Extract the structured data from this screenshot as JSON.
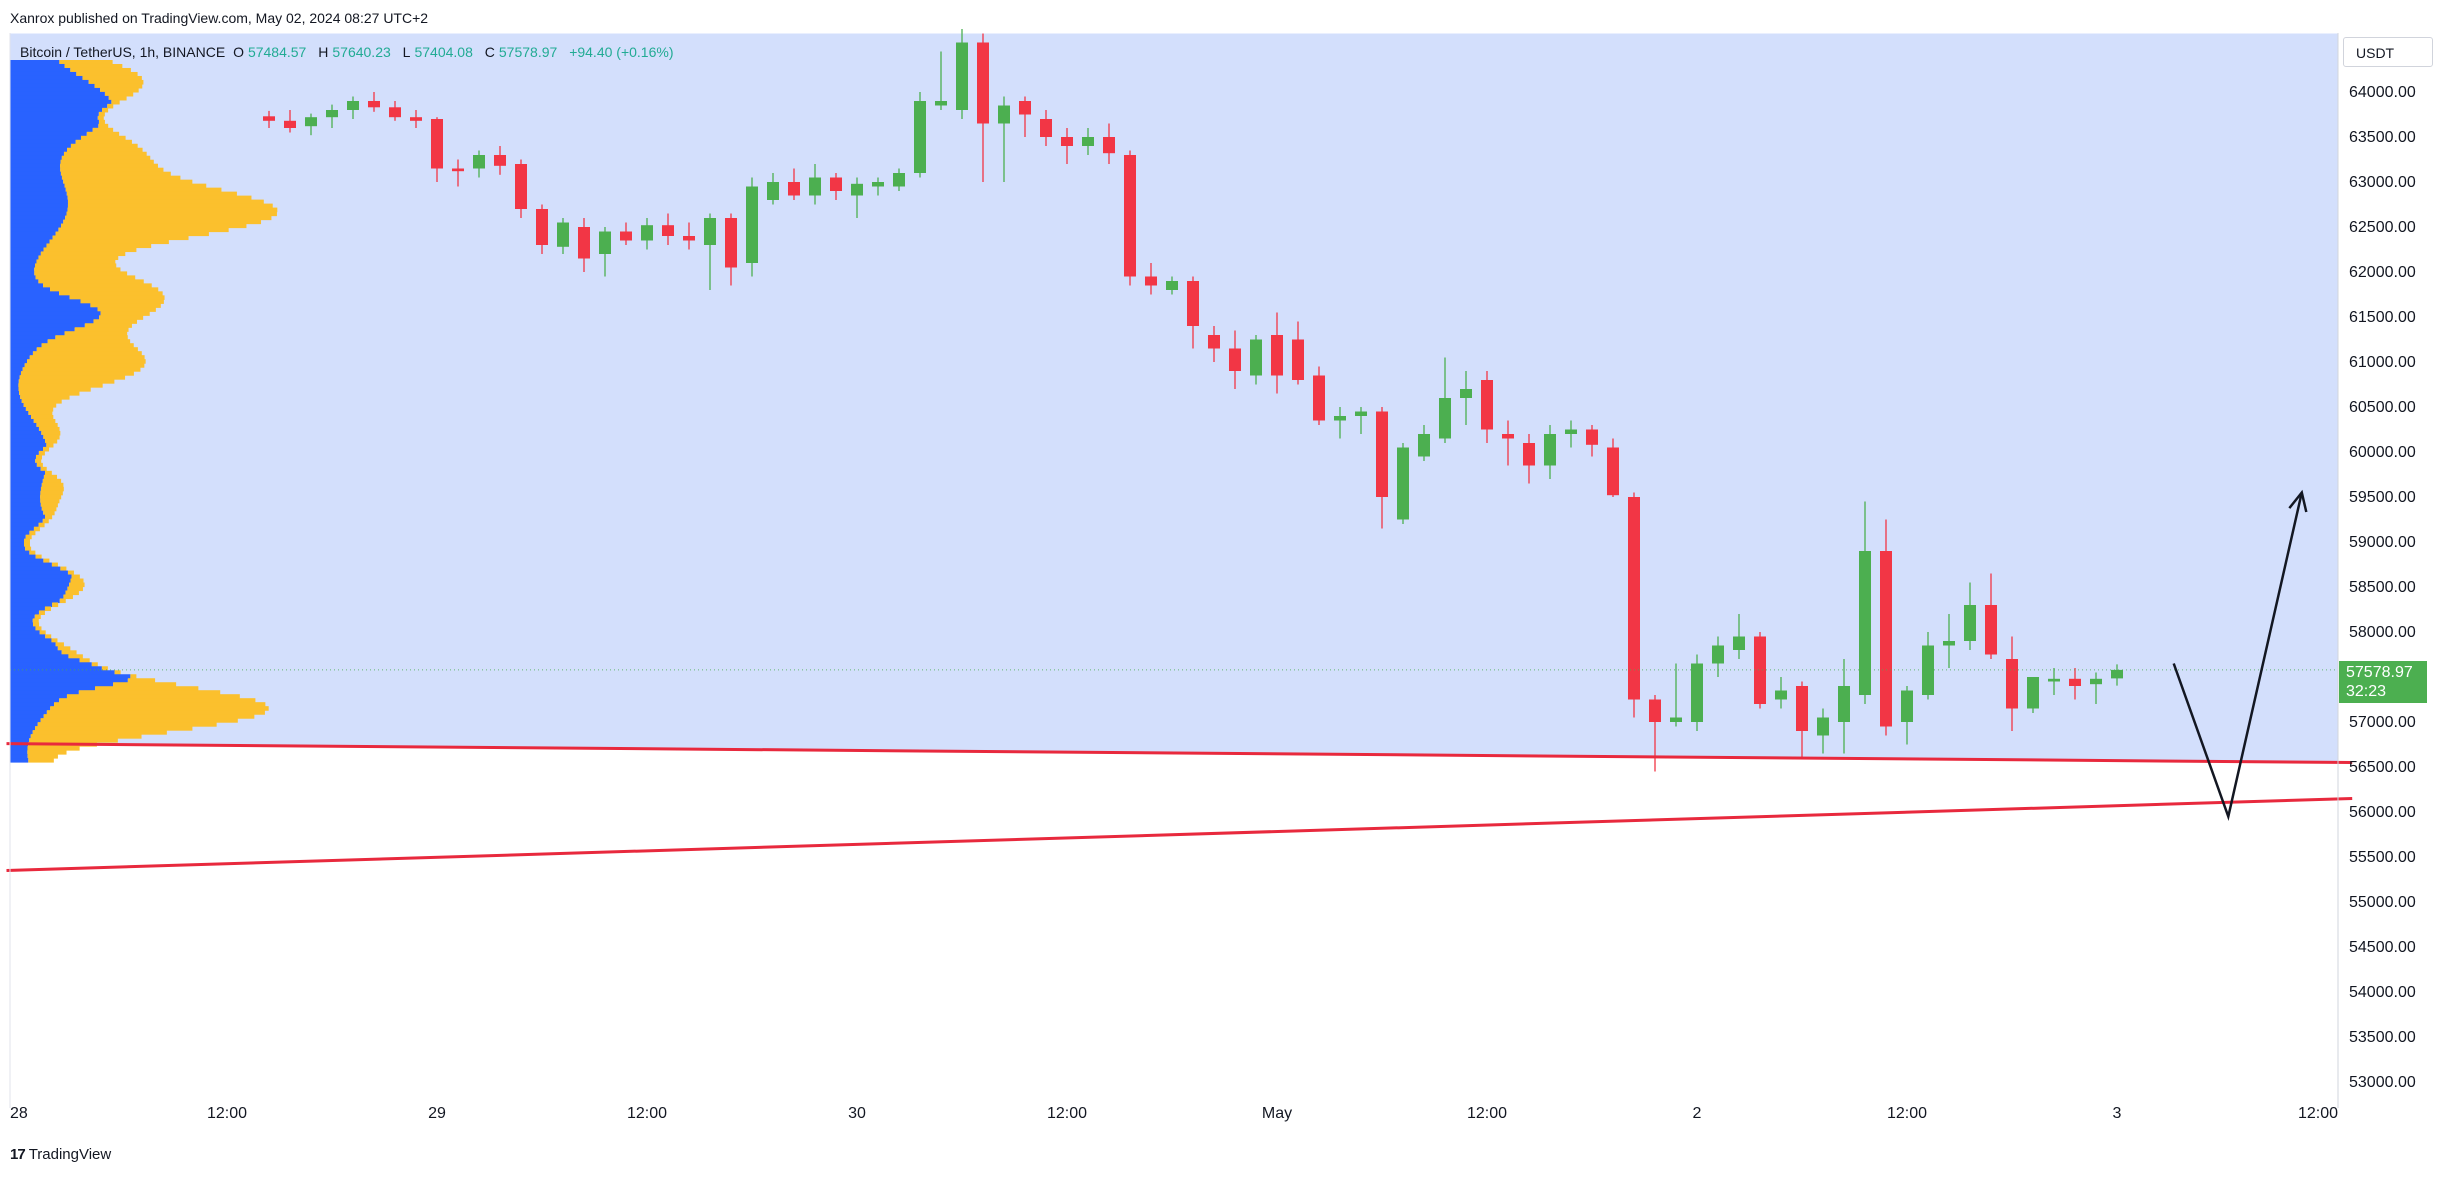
{
  "header": {
    "published": "Xanrox published on TradingView.com, May 02, 2024 08:27 UTC+2"
  },
  "legend": {
    "symbol": "Bitcoin / TetherUS, 1h, BINANCE",
    "open_label": "O",
    "open": "57484.57",
    "high_label": "H",
    "high": "57640.23",
    "low_label": "L",
    "low": "57404.08",
    "close_label": "C",
    "close": "57578.97",
    "change": "+94.40 (+0.16%)"
  },
  "currency": "USDT",
  "price_tag": {
    "price": "57578.97",
    "countdown": "32:23"
  },
  "brand": {
    "logo": "17",
    "name": "TradingView"
  },
  "colors": {
    "up": "#4caf50",
    "down": "#f23645",
    "zone": "#d3dffc",
    "trendline": "#e8293d",
    "profile_up": "#fbc02d",
    "profile_down": "#2962ff",
    "projection": "#131722"
  },
  "chart_data": {
    "type": "candlestick",
    "interval": "1h",
    "ylim": [
      52800,
      64650
    ],
    "yticks": [
      53000,
      53500,
      54000,
      54500,
      55000,
      55500,
      56000,
      56500,
      57000,
      57500,
      58000,
      58500,
      59000,
      59500,
      60000,
      60500,
      61000,
      61500,
      62000,
      62500,
      63000,
      63500,
      64000
    ],
    "ytick_labels": [
      "53000.00",
      "53500.00",
      "54000.00",
      "54500.00",
      "55000.00",
      "55500.00",
      "56000.00",
      "56500.00",
      "57000.00",
      "57500.00",
      "58000.00",
      "58500.00",
      "59000.00",
      "59500.00",
      "60000.00",
      "60500.00",
      "61000.00",
      "61500.00",
      "62000.00",
      "62500.00",
      "63000.00",
      "63500.00",
      "64000.00"
    ],
    "xlim": [
      0,
      111.2
    ],
    "xticks": [
      {
        "x": 0,
        "label": "28"
      },
      {
        "x": 10,
        "label": "12:00"
      },
      {
        "x": 20,
        "label": "29"
      },
      {
        "x": 30,
        "label": "12:00"
      },
      {
        "x": 40,
        "label": "30"
      },
      {
        "x": 50,
        "label": "12:00"
      },
      {
        "x": 60,
        "label": "May"
      },
      {
        "x": 70,
        "label": "12:00"
      },
      {
        "x": 80,
        "label": "2"
      },
      {
        "x": 90,
        "label": "12:00"
      },
      {
        "x": 100,
        "label": "3"
      },
      {
        "x": 110,
        "label": "12:00"
      }
    ],
    "candles": [
      [
        12.0,
        63730,
        63790,
        63600,
        63680
      ],
      [
        13.0,
        63680,
        63800,
        63550,
        63600
      ],
      [
        14.0,
        63620,
        63760,
        63520,
        63720
      ],
      [
        15.0,
        63720,
        63860,
        63600,
        63800
      ],
      [
        16.0,
        63800,
        63950,
        63700,
        63900
      ],
      [
        17.0,
        63900,
        64000,
        63780,
        63830
      ],
      [
        18.0,
        63830,
        63900,
        63680,
        63720
      ],
      [
        19.0,
        63720,
        63800,
        63600,
        63680
      ],
      [
        20.0,
        63700,
        63720,
        63000,
        63150
      ],
      [
        21.0,
        63150,
        63250,
        62950,
        63120
      ],
      [
        22.0,
        63150,
        63350,
        63050,
        63300
      ],
      [
        23.0,
        63300,
        63400,
        63080,
        63180
      ],
      [
        24.0,
        63200,
        63250,
        62600,
        62700
      ],
      [
        25.0,
        62700,
        62750,
        62200,
        62300
      ],
      [
        26.0,
        62280,
        62600,
        62200,
        62550
      ],
      [
        27.0,
        62500,
        62600,
        62000,
        62150
      ],
      [
        28.0,
        62200,
        62500,
        61950,
        62450
      ],
      [
        29.0,
        62450,
        62550,
        62300,
        62350
      ],
      [
        30.0,
        62350,
        62600,
        62250,
        62520
      ],
      [
        31.0,
        62520,
        62650,
        62300,
        62400
      ],
      [
        32.0,
        62400,
        62550,
        62250,
        62350
      ],
      [
        33.0,
        62300,
        62650,
        61800,
        62600
      ],
      [
        34.0,
        62600,
        62650,
        61850,
        62050
      ],
      [
        35.0,
        62100,
        63050,
        61950,
        62950
      ],
      [
        36.0,
        62800,
        63100,
        62750,
        63000
      ],
      [
        37.0,
        63000,
        63150,
        62800,
        62850
      ],
      [
        38.0,
        62850,
        63200,
        62750,
        63050
      ],
      [
        39.0,
        63050,
        63100,
        62800,
        62900
      ],
      [
        40.0,
        62850,
        63050,
        62600,
        62980
      ],
      [
        41.0,
        62950,
        63050,
        62850,
        63000
      ],
      [
        42.0,
        62950,
        63150,
        62900,
        63100
      ],
      [
        43.0,
        63100,
        64000,
        63050,
        63900
      ],
      [
        44.0,
        63850,
        64450,
        63800,
        63900
      ],
      [
        45.0,
        63800,
        64700,
        63700,
        64550
      ],
      [
        46.0,
        64550,
        64650,
        63000,
        63650
      ],
      [
        47.0,
        63650,
        63950,
        63000,
        63850
      ],
      [
        48.0,
        63900,
        63950,
        63500,
        63750
      ],
      [
        49.0,
        63700,
        63800,
        63400,
        63500
      ],
      [
        50.0,
        63500,
        63600,
        63200,
        63400
      ],
      [
        51.0,
        63400,
        63600,
        63300,
        63500
      ],
      [
        52.0,
        63500,
        63650,
        63200,
        63320
      ],
      [
        53.0,
        63300,
        63350,
        61850,
        61950
      ],
      [
        54.0,
        61950,
        62100,
        61750,
        61850
      ],
      [
        55.0,
        61800,
        61950,
        61750,
        61900
      ],
      [
        56.0,
        61900,
        61950,
        61150,
        61400
      ],
      [
        57.0,
        61300,
        61400,
        61000,
        61150
      ],
      [
        58.0,
        61150,
        61350,
        60700,
        60900
      ],
      [
        59.0,
        60850,
        61300,
        60750,
        61250
      ],
      [
        60.0,
        61300,
        61550,
        60650,
        60850
      ],
      [
        61.0,
        61250,
        61450,
        60750,
        60800
      ],
      [
        62.0,
        60850,
        60950,
        60300,
        60350
      ],
      [
        63.0,
        60350,
        60500,
        60150,
        60400
      ],
      [
        64.0,
        60400,
        60500,
        60200,
        60450
      ],
      [
        65.0,
        60450,
        60500,
        59150,
        59500
      ],
      [
        66.0,
        59250,
        60100,
        59200,
        60050
      ],
      [
        67.0,
        59950,
        60300,
        59900,
        60200
      ],
      [
        68.0,
        60150,
        61050,
        60100,
        60600
      ],
      [
        69.0,
        60600,
        60900,
        60300,
        60700
      ],
      [
        70.0,
        60800,
        60900,
        60100,
        60250
      ],
      [
        71.0,
        60200,
        60350,
        59850,
        60150
      ],
      [
        72.0,
        60100,
        60200,
        59650,
        59850
      ],
      [
        73.0,
        59850,
        60300,
        59700,
        60200
      ],
      [
        74.0,
        60200,
        60350,
        60050,
        60250
      ],
      [
        75.0,
        60250,
        60300,
        59950,
        60080
      ],
      [
        76.0,
        60050,
        60150,
        59500,
        59520
      ],
      [
        77.0,
        59500,
        59550,
        57050,
        57250
      ],
      [
        78.0,
        57250,
        57300,
        56450,
        57000
      ],
      [
        79.0,
        57000,
        57650,
        56950,
        57050
      ],
      [
        80.0,
        57000,
        57750,
        56900,
        57650
      ],
      [
        81.0,
        57650,
        57950,
        57500,
        57850
      ],
      [
        82.0,
        57800,
        58200,
        57700,
        57950
      ],
      [
        83.0,
        57950,
        58000,
        57150,
        57200
      ],
      [
        84.0,
        57250,
        57500,
        57150,
        57350
      ],
      [
        85.0,
        57400,
        57450,
        56600,
        56900
      ],
      [
        86.0,
        56850,
        57150,
        56650,
        57050
      ],
      [
        87.0,
        57000,
        57700,
        56650,
        57400
      ],
      [
        88.0,
        57300,
        59450,
        57200,
        58900
      ],
      [
        89.0,
        58900,
        59250,
        56850,
        56950
      ],
      [
        90.0,
        57000,
        57400,
        56750,
        57350
      ],
      [
        91.0,
        57300,
        58000,
        57250,
        57850
      ],
      [
        92.0,
        57850,
        58200,
        57600,
        57900
      ],
      [
        93.0,
        57900,
        58550,
        57800,
        58300
      ],
      [
        94.0,
        58300,
        58650,
        57700,
        57750
      ],
      [
        95.0,
        57700,
        57950,
        56900,
        57150
      ],
      [
        96.0,
        57150,
        57500,
        57100,
        57500
      ],
      [
        97.0,
        57450,
        57600,
        57300,
        57480
      ],
      [
        98.0,
        57480,
        57600,
        57250,
        57400
      ],
      [
        99.0,
        57420,
        57550,
        57200,
        57480
      ],
      [
        100.0,
        57484.57,
        57640.23,
        57404.08,
        57578.97
      ]
    ],
    "drawings": {
      "upper_line": [
        [
          -0.5,
          56760
        ],
        [
          111.2,
          56550
        ]
      ],
      "lower_line": [
        [
          -0.5,
          55350
        ],
        [
          111.2,
          56150
        ]
      ],
      "zone_top": 64650,
      "projection": [
        [
          102.7,
          57650
        ],
        [
          105.3,
          55950
        ],
        [
          108.8,
          59550
        ]
      ]
    },
    "last_price": 57578.97
  }
}
